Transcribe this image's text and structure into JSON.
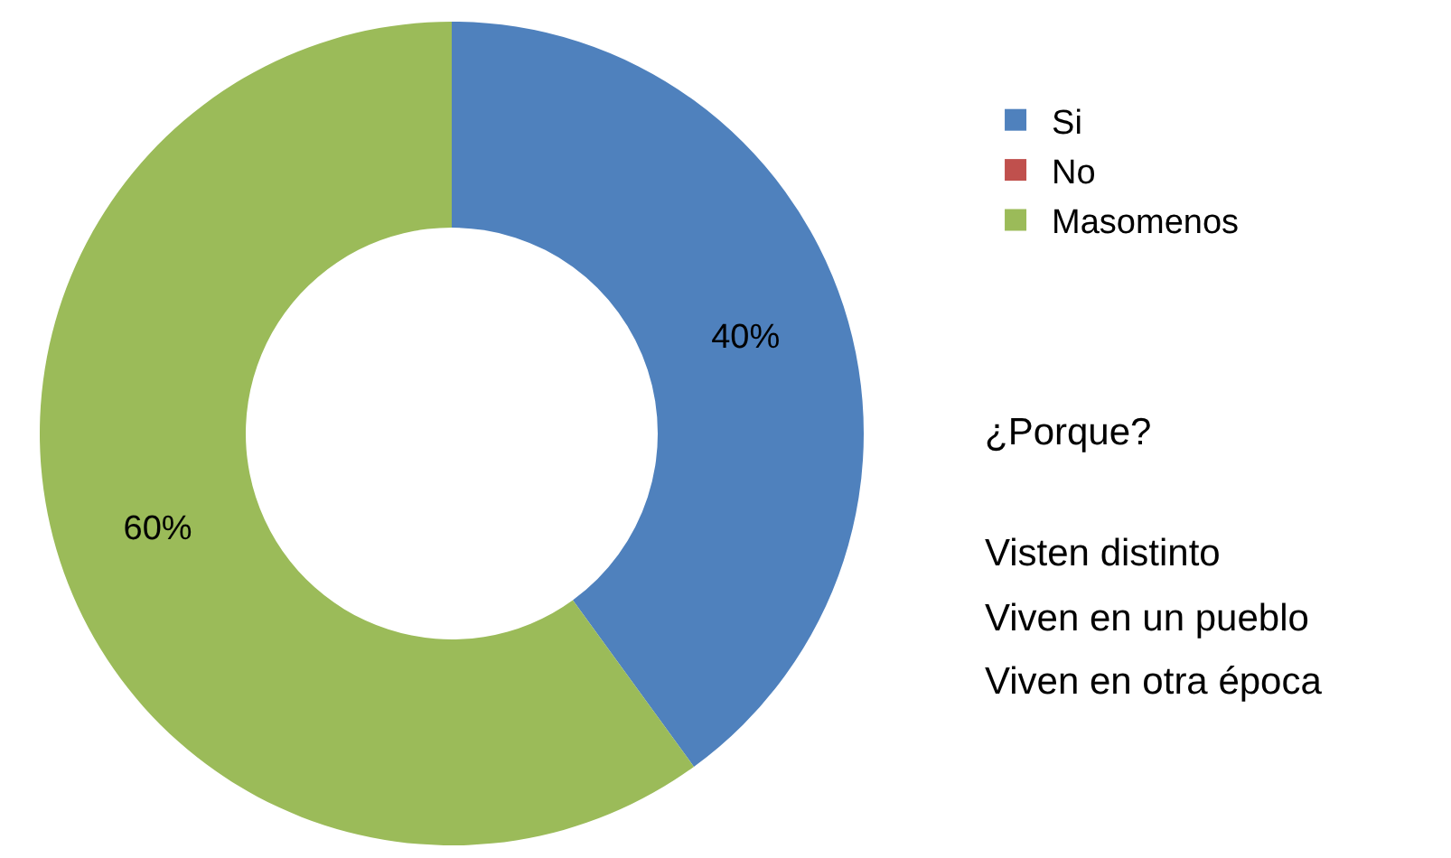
{
  "chart_data": {
    "type": "donut",
    "categories": [
      "Si",
      "No",
      "Masomenos"
    ],
    "values": [
      40,
      0,
      60
    ],
    "colors": [
      "#4f81bd",
      "#c0504d",
      "#9bbb59"
    ],
    "value_labels": [
      "40%",
      null,
      "60%"
    ],
    "legend": "right",
    "annotations": [
      "¿Porque?",
      "Visten distinto",
      "Viven en un pueblo",
      "Viven en otra época"
    ]
  }
}
